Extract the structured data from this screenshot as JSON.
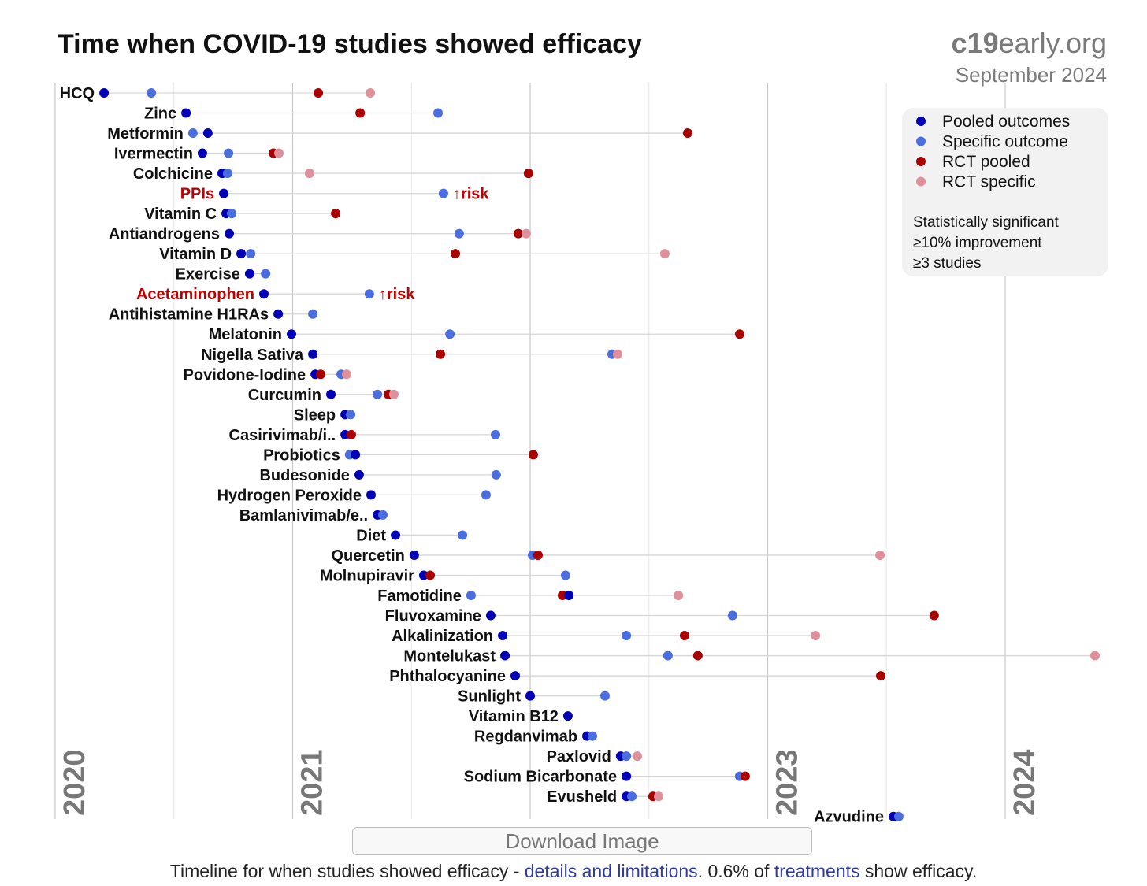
{
  "chart_data": {
    "type": "scatter",
    "title": "Time when COVID-19 studies showed efficacy",
    "brand": {
      "bold": "c19",
      "rest": "early.org"
    },
    "date": "September 2024",
    "x_axis": {
      "unit": "year",
      "range": [
        2020,
        2024.43
      ],
      "tick_labels": [
        "2020",
        "2021",
        "2023",
        "2024"
      ],
      "grid": true
    },
    "legend": {
      "placement": "top-right",
      "entries": [
        {
          "key": "pooled",
          "label": "Pooled outcomes",
          "color": "#0000b8"
        },
        {
          "key": "specific",
          "label": "Specific outcome",
          "color": "#4a6ee0"
        },
        {
          "key": "rct_pooled",
          "label": "RCT pooled",
          "color": "#aa0000"
        },
        {
          "key": "rct_specific",
          "label": "RCT specific",
          "color": "#e0909a"
        }
      ],
      "notes": [
        "Statistically significant",
        "≥10% improvement",
        "≥3 studies"
      ]
    },
    "risk_label": "↑risk",
    "series": [
      {
        "name": "HCQ",
        "pooled": 2020.206,
        "specific": 2020.405,
        "rct_pooled": 2021.108,
        "rct_specific": 2021.327
      },
      {
        "name": "Zinc",
        "pooled": 2020.551,
        "specific": 2021.612,
        "rct_pooled": 2021.284,
        "rct_specific": null
      },
      {
        "name": "Metformin",
        "pooled": 2020.643,
        "specific": 2020.58,
        "rct_pooled": 2022.663,
        "rct_specific": null
      },
      {
        "name": "Ivermectin",
        "pooled": 2020.62,
        "specific": 2020.73,
        "rct_pooled": 2020.919,
        "rct_specific": 2020.942
      },
      {
        "name": "Colchicine",
        "pooled": 2020.703,
        "specific": 2020.726,
        "rct_pooled": 2021.993,
        "rct_specific": 2021.071
      },
      {
        "name": "PPIs",
        "pooled": 2020.71,
        "specific": 2021.635,
        "rct_pooled": null,
        "rct_specific": null,
        "risk": true
      },
      {
        "name": "Vitamin C",
        "pooled": 2020.72,
        "specific": 2020.743,
        "rct_pooled": 2021.181,
        "rct_specific": null
      },
      {
        "name": "Antiandrogens",
        "pooled": 2020.733,
        "specific": 2021.701,
        "rct_pooled": 2021.95,
        "rct_specific": 2021.983
      },
      {
        "name": "Vitamin D",
        "pooled": 2020.783,
        "specific": 2020.823,
        "rct_pooled": 2021.685,
        "rct_specific": 2022.567
      },
      {
        "name": "Exercise",
        "pooled": 2020.819,
        "specific": 2020.886,
        "rct_pooled": null,
        "rct_specific": null
      },
      {
        "name": "Acetaminophen",
        "pooled": 2020.879,
        "specific": 2021.323,
        "rct_pooled": null,
        "rct_specific": null,
        "risk": true
      },
      {
        "name": "Antihistamine H1RAs",
        "pooled": 2020.939,
        "specific": 2021.085,
        "rct_pooled": null,
        "rct_specific": null
      },
      {
        "name": "Melatonin",
        "pooled": 2020.995,
        "specific": 2021.662,
        "rct_pooled": 2022.882,
        "rct_specific": null
      },
      {
        "name": "Nigella Sativa",
        "pooled": 2021.085,
        "specific": 2022.345,
        "rct_pooled": 2021.622,
        "rct_specific": 2022.368
      },
      {
        "name": "Povidone-Iodine",
        "pooled": 2021.095,
        "specific": 2021.204,
        "rct_pooled": 2021.118,
        "rct_specific": 2021.227
      },
      {
        "name": "Curcumin",
        "pooled": 2021.161,
        "specific": 2021.357,
        "rct_pooled": 2021.403,
        "rct_specific": 2021.426
      },
      {
        "name": "Sleep",
        "pooled": 2021.221,
        "specific": 2021.244,
        "rct_pooled": null,
        "rct_specific": null
      },
      {
        "name": "Casirivimab/i..",
        "pooled": 2021.221,
        "specific": 2021.854,
        "rct_pooled": 2021.247,
        "rct_specific": null
      },
      {
        "name": "Probiotics",
        "pooled": 2021.264,
        "specific": 2021.24,
        "rct_pooled": 2022.013,
        "rct_specific": null
      },
      {
        "name": "Budesonide",
        "pooled": 2021.28,
        "specific": 2021.857,
        "rct_pooled": null,
        "rct_specific": null
      },
      {
        "name": "Hydrogen Peroxide",
        "pooled": 2021.33,
        "specific": 2021.814,
        "rct_pooled": null,
        "rct_specific": null
      },
      {
        "name": "Bamlanivimab/e..",
        "pooled": 2021.357,
        "specific": 2021.38,
        "rct_pooled": null,
        "rct_specific": null
      },
      {
        "name": "Diet",
        "pooled": 2021.433,
        "specific": 2021.715,
        "rct_pooled": null,
        "rct_specific": null
      },
      {
        "name": "Quercetin",
        "pooled": 2021.512,
        "specific": 2022.01,
        "rct_pooled": 2022.033,
        "rct_specific": 2023.473
      },
      {
        "name": "Molnupiravir",
        "pooled": 2021.552,
        "specific": 2022.149,
        "rct_pooled": 2021.579,
        "rct_specific": null
      },
      {
        "name": "Famotidine",
        "pooled": 2022.163,
        "specific": 2021.751,
        "rct_pooled": 2022.136,
        "rct_specific": 2022.624
      },
      {
        "name": "Fluvoxamine",
        "pooled": 2021.834,
        "specific": 2022.852,
        "rct_pooled": 2023.701,
        "rct_specific": null
      },
      {
        "name": "Alkalinization",
        "pooled": 2021.884,
        "specific": 2022.405,
        "rct_pooled": 2022.65,
        "rct_specific": 2023.201
      },
      {
        "name": "Montelukast",
        "pooled": 2021.894,
        "specific": 2022.58,
        "rct_pooled": 2022.706,
        "rct_specific": 2024.378
      },
      {
        "name": "Phthalocyanine",
        "pooled": 2021.937,
        "specific": null,
        "rct_pooled": 2023.476,
        "rct_specific": null
      },
      {
        "name": "Sunlight",
        "pooled": 2022.0,
        "specific": 2022.315,
        "rct_pooled": null,
        "rct_specific": null
      },
      {
        "name": "Vitamin B12",
        "pooled": 2022.159,
        "specific": null,
        "rct_pooled": null,
        "rct_specific": null
      },
      {
        "name": "Regdanvimab",
        "pooled": 2022.239,
        "specific": 2022.262,
        "rct_pooled": null,
        "rct_specific": null
      },
      {
        "name": "Paxlovid",
        "pooled": 2022.381,
        "specific": 2022.405,
        "rct_pooled": null,
        "rct_specific": 2022.451
      },
      {
        "name": "Sodium Bicarbonate",
        "pooled": 2022.405,
        "specific": 2022.882,
        "rct_pooled": 2022.905,
        "rct_specific": null
      },
      {
        "name": "Evusheld",
        "pooled": 2022.405,
        "specific": 2022.428,
        "rct_pooled": 2022.517,
        "rct_specific": 2022.541
      },
      {
        "name": "Azvudine",
        "pooled": 2023.529,
        "specific": 2023.552,
        "rct_pooled": null,
        "rct_specific": null
      }
    ]
  },
  "download_label": "Download Image",
  "footer": {
    "pre": "Timeline for when studies showed efficacy - ",
    "link1": "details and limitations",
    "mid": ". 0.6% of ",
    "link2": "treatments",
    "post": " show efficacy."
  }
}
